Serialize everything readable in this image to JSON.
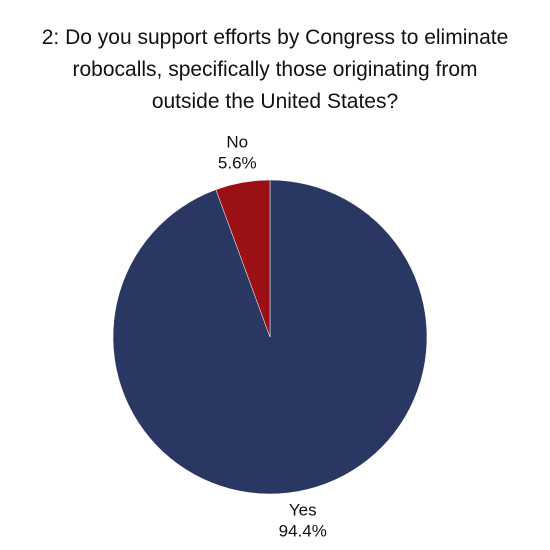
{
  "chart_data": {
    "type": "pie",
    "title": "2: Do you support efforts by Congress to eliminate robocalls, specifically those originating from outside the United States?",
    "categories": [
      "Yes",
      "No"
    ],
    "values": [
      94.4,
      5.6
    ],
    "value_labels": [
      "94.4%",
      "5.6%"
    ],
    "colors": [
      "#2b3763",
      "#9b1015"
    ]
  }
}
